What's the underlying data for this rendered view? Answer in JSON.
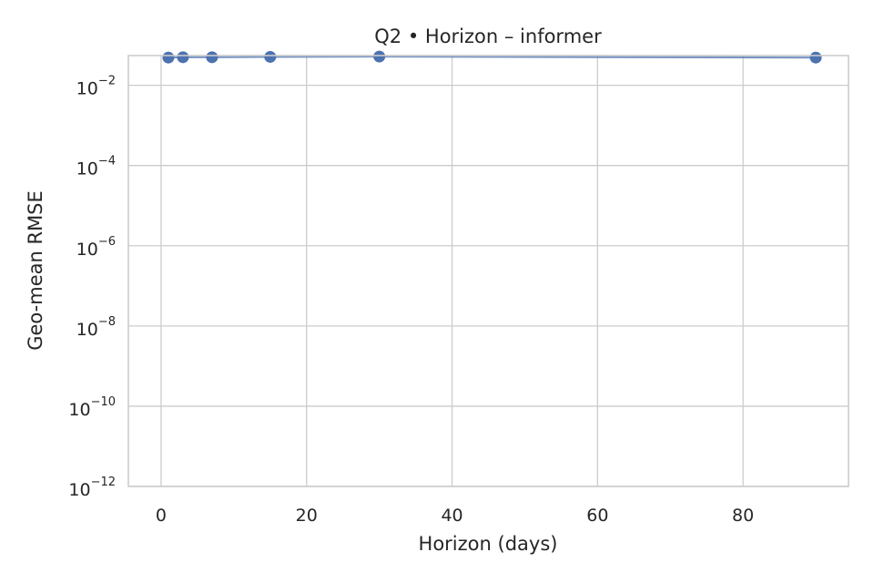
{
  "chart_data": {
    "type": "line",
    "title": "Q2 • Horizon – informer",
    "xlabel": "Horizon (days)",
    "ylabel": "Geo-mean RMSE",
    "xlim": [
      -4.5,
      94.5
    ],
    "ylim": [
      1e-12,
      0.055
    ],
    "yscale": "log",
    "grid": true,
    "xticks": [
      0,
      20,
      40,
      60,
      80
    ],
    "xtick_labels": [
      "0",
      "20",
      "40",
      "60",
      "80"
    ],
    "yticks": [
      1e-12,
      1e-10,
      1e-08,
      1e-06,
      0.0001,
      0.01
    ],
    "ytick_labels": [
      {
        "base": "10",
        "exp": "−12"
      },
      {
        "base": "10",
        "exp": "−10"
      },
      {
        "base": "10",
        "exp": "−8"
      },
      {
        "base": "10",
        "exp": "−6"
      },
      {
        "base": "10",
        "exp": "−4"
      },
      {
        "base": "10",
        "exp": "−2"
      }
    ],
    "series": [
      {
        "color": "#4c72b0",
        "x": [
          1,
          3,
          7,
          15,
          30,
          90
        ],
        "y": [
          0.049,
          0.05,
          0.05,
          0.051,
          0.052,
          0.049
        ]
      }
    ]
  }
}
